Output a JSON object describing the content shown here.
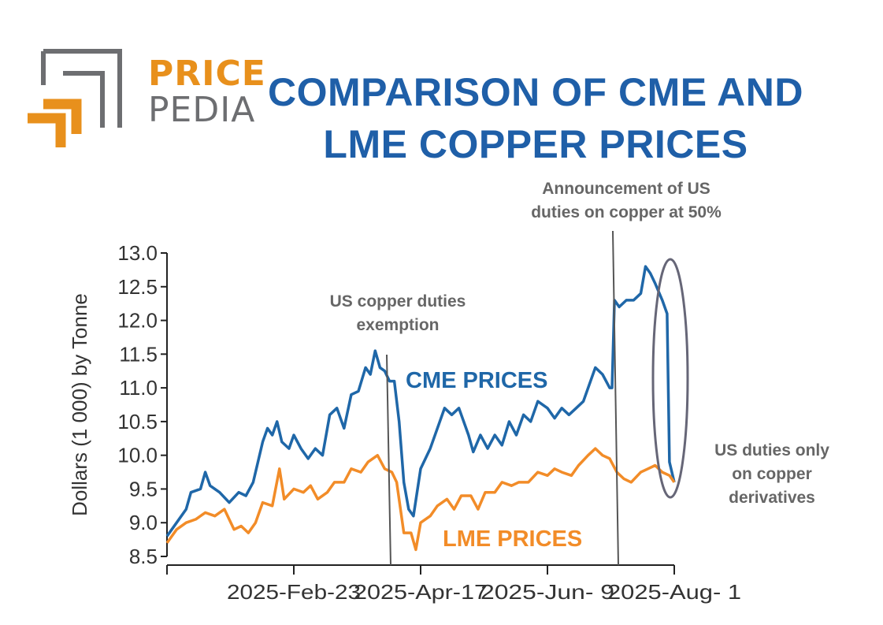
{
  "logo": {
    "line1": "PRICE",
    "line2": "PEDIA"
  },
  "title": {
    "line1": "COMPARISON OF CME AND",
    "line2": "LME COPPER PRICES"
  },
  "annotations": {
    "exemption_line1": "US copper duties",
    "exemption_line2": "exemption",
    "announcement_line1": "Announcement of US",
    "announcement_line2": "duties on copper at 50%",
    "derivatives_line1": "US duties only",
    "derivatives_line2": "on copper",
    "derivatives_line3": "derivatives"
  },
  "colors": {
    "cme": "#1f67a8",
    "lme": "#f28c28",
    "title": "#1f5fa8",
    "annotation": "#666666",
    "logo_orange": "#e8901c",
    "logo_gray": "#6d6e71"
  },
  "chart_data": {
    "type": "line",
    "title": "COMPARISON OF CME AND LME COPPER PRICES",
    "xlabel": "",
    "ylabel": "Dollars (1 000) by Tonne",
    "ylim": [
      8.5,
      13.0
    ],
    "yticks": [
      "8.5",
      "9.0",
      "9.5",
      "10.0",
      "10.5",
      "11.0",
      "11.5",
      "12.0",
      "12.5",
      "13.0"
    ],
    "xlim": [
      "2025-01-01",
      "2025-08-01"
    ],
    "xticks": [
      {
        "date": "2025-02-23",
        "label": "2025-Feb-23"
      },
      {
        "date": "2025-04-17",
        "label": "2025-Apr-17"
      },
      {
        "date": "2025-06-09",
        "label": "2025-Jun- 9"
      },
      {
        "date": "2025-08-01",
        "label": "2025-Aug- 1"
      }
    ],
    "grid": false,
    "events": [
      {
        "date": "2025-04-10",
        "label": "US copper duties exemption"
      },
      {
        "date": "2025-07-07",
        "label": "Announcement of US duties on copper at 50%"
      },
      {
        "date": "2025-08-01",
        "label": "US duties only on copper derivatives"
      }
    ],
    "series": [
      {
        "name": "CME PRICES",
        "data": [
          [
            "2025-01-01",
            8.8
          ],
          [
            "2025-01-05",
            9.0
          ],
          [
            "2025-01-09",
            9.2
          ],
          [
            "2025-01-11",
            9.45
          ],
          [
            "2025-01-15",
            9.5
          ],
          [
            "2025-01-17",
            9.75
          ],
          [
            "2025-01-19",
            9.55
          ],
          [
            "2025-01-23",
            9.45
          ],
          [
            "2025-01-27",
            9.3
          ],
          [
            "2025-01-31",
            9.45
          ],
          [
            "2025-02-03",
            9.4
          ],
          [
            "2025-02-06",
            9.6
          ],
          [
            "2025-02-10",
            10.2
          ],
          [
            "2025-02-12",
            10.4
          ],
          [
            "2025-02-14",
            10.3
          ],
          [
            "2025-02-16",
            10.5
          ],
          [
            "2025-02-18",
            10.2
          ],
          [
            "2025-02-21",
            10.1
          ],
          [
            "2025-02-23",
            10.3
          ],
          [
            "2025-02-26",
            10.1
          ],
          [
            "2025-03-01",
            9.95
          ],
          [
            "2025-03-04",
            10.1
          ],
          [
            "2025-03-07",
            10.0
          ],
          [
            "2025-03-10",
            10.6
          ],
          [
            "2025-03-13",
            10.7
          ],
          [
            "2025-03-16",
            10.4
          ],
          [
            "2025-03-19",
            10.9
          ],
          [
            "2025-03-22",
            10.95
          ],
          [
            "2025-03-25",
            11.3
          ],
          [
            "2025-03-27",
            11.2
          ],
          [
            "2025-03-29",
            11.55
          ],
          [
            "2025-03-31",
            11.3
          ],
          [
            "2025-04-02",
            11.25
          ],
          [
            "2025-04-04",
            11.1
          ],
          [
            "2025-04-06",
            11.1
          ],
          [
            "2025-04-08",
            10.5
          ],
          [
            "2025-04-10",
            9.6
          ],
          [
            "2025-04-12",
            9.2
          ],
          [
            "2025-04-14",
            9.1
          ],
          [
            "2025-04-17",
            9.8
          ],
          [
            "2025-04-21",
            10.1
          ],
          [
            "2025-04-24",
            10.4
          ],
          [
            "2025-04-27",
            10.7
          ],
          [
            "2025-04-30",
            10.6
          ],
          [
            "2025-05-03",
            10.7
          ],
          [
            "2025-05-07",
            10.3
          ],
          [
            "2025-05-09",
            10.05
          ],
          [
            "2025-05-12",
            10.3
          ],
          [
            "2025-05-15",
            10.1
          ],
          [
            "2025-05-18",
            10.3
          ],
          [
            "2025-05-21",
            10.15
          ],
          [
            "2025-05-24",
            10.5
          ],
          [
            "2025-05-27",
            10.3
          ],
          [
            "2025-05-30",
            10.6
          ],
          [
            "2025-06-02",
            10.5
          ],
          [
            "2025-06-05",
            10.8
          ],
          [
            "2025-06-09",
            10.7
          ],
          [
            "2025-06-12",
            10.55
          ],
          [
            "2025-06-15",
            10.7
          ],
          [
            "2025-06-18",
            10.6
          ],
          [
            "2025-06-21",
            10.7
          ],
          [
            "2025-06-24",
            10.8
          ],
          [
            "2025-06-27",
            11.1
          ],
          [
            "2025-06-29",
            11.3
          ],
          [
            "2025-07-02",
            11.2
          ],
          [
            "2025-07-05",
            11.0
          ],
          [
            "2025-07-06",
            11.0
          ],
          [
            "2025-07-07",
            12.3
          ],
          [
            "2025-07-09",
            12.2
          ],
          [
            "2025-07-12",
            12.3
          ],
          [
            "2025-07-15",
            12.3
          ],
          [
            "2025-07-18",
            12.4
          ],
          [
            "2025-07-20",
            12.8
          ],
          [
            "2025-07-22",
            12.7
          ],
          [
            "2025-07-24",
            12.55
          ],
          [
            "2025-07-27",
            12.3
          ],
          [
            "2025-07-29",
            12.1
          ],
          [
            "2025-07-30",
            9.9
          ],
          [
            "2025-08-01",
            9.6
          ]
        ]
      },
      {
        "name": "LME PRICES",
        "data": [
          [
            "2025-01-01",
            8.7
          ],
          [
            "2025-01-05",
            8.9
          ],
          [
            "2025-01-09",
            9.0
          ],
          [
            "2025-01-13",
            9.05
          ],
          [
            "2025-01-17",
            9.15
          ],
          [
            "2025-01-21",
            9.1
          ],
          [
            "2025-01-25",
            9.2
          ],
          [
            "2025-01-29",
            8.9
          ],
          [
            "2025-02-01",
            8.95
          ],
          [
            "2025-02-04",
            8.85
          ],
          [
            "2025-02-07",
            9.0
          ],
          [
            "2025-02-10",
            9.3
          ],
          [
            "2025-02-14",
            9.25
          ],
          [
            "2025-02-17",
            9.8
          ],
          [
            "2025-02-19",
            9.35
          ],
          [
            "2025-02-23",
            9.5
          ],
          [
            "2025-02-27",
            9.45
          ],
          [
            "2025-03-02",
            9.55
          ],
          [
            "2025-03-05",
            9.35
          ],
          [
            "2025-03-09",
            9.45
          ],
          [
            "2025-03-12",
            9.6
          ],
          [
            "2025-03-16",
            9.6
          ],
          [
            "2025-03-19",
            9.8
          ],
          [
            "2025-03-23",
            9.75
          ],
          [
            "2025-03-26",
            9.9
          ],
          [
            "2025-03-30",
            10.0
          ],
          [
            "2025-04-02",
            9.8
          ],
          [
            "2025-04-05",
            9.75
          ],
          [
            "2025-04-07",
            9.6
          ],
          [
            "2025-04-10",
            8.85
          ],
          [
            "2025-04-13",
            8.85
          ],
          [
            "2025-04-15",
            8.6
          ],
          [
            "2025-04-17",
            9.0
          ],
          [
            "2025-04-21",
            9.1
          ],
          [
            "2025-04-24",
            9.25
          ],
          [
            "2025-04-28",
            9.35
          ],
          [
            "2025-05-01",
            9.2
          ],
          [
            "2025-05-04",
            9.4
          ],
          [
            "2025-05-08",
            9.4
          ],
          [
            "2025-05-11",
            9.2
          ],
          [
            "2025-05-14",
            9.45
          ],
          [
            "2025-05-18",
            9.45
          ],
          [
            "2025-05-21",
            9.6
          ],
          [
            "2025-05-25",
            9.55
          ],
          [
            "2025-05-28",
            9.6
          ],
          [
            "2025-06-01",
            9.6
          ],
          [
            "2025-06-05",
            9.75
          ],
          [
            "2025-06-09",
            9.7
          ],
          [
            "2025-06-12",
            9.8
          ],
          [
            "2025-06-15",
            9.75
          ],
          [
            "2025-06-19",
            9.7
          ],
          [
            "2025-06-22",
            9.85
          ],
          [
            "2025-06-26",
            10.0
          ],
          [
            "2025-06-29",
            10.1
          ],
          [
            "2025-07-02",
            10.0
          ],
          [
            "2025-07-05",
            9.95
          ],
          [
            "2025-07-08",
            9.75
          ],
          [
            "2025-07-11",
            9.65
          ],
          [
            "2025-07-14",
            9.6
          ],
          [
            "2025-07-18",
            9.75
          ],
          [
            "2025-07-21",
            9.8
          ],
          [
            "2025-07-24",
            9.85
          ],
          [
            "2025-07-27",
            9.75
          ],
          [
            "2025-07-30",
            9.7
          ],
          [
            "2025-08-01",
            9.6
          ]
        ]
      }
    ]
  }
}
